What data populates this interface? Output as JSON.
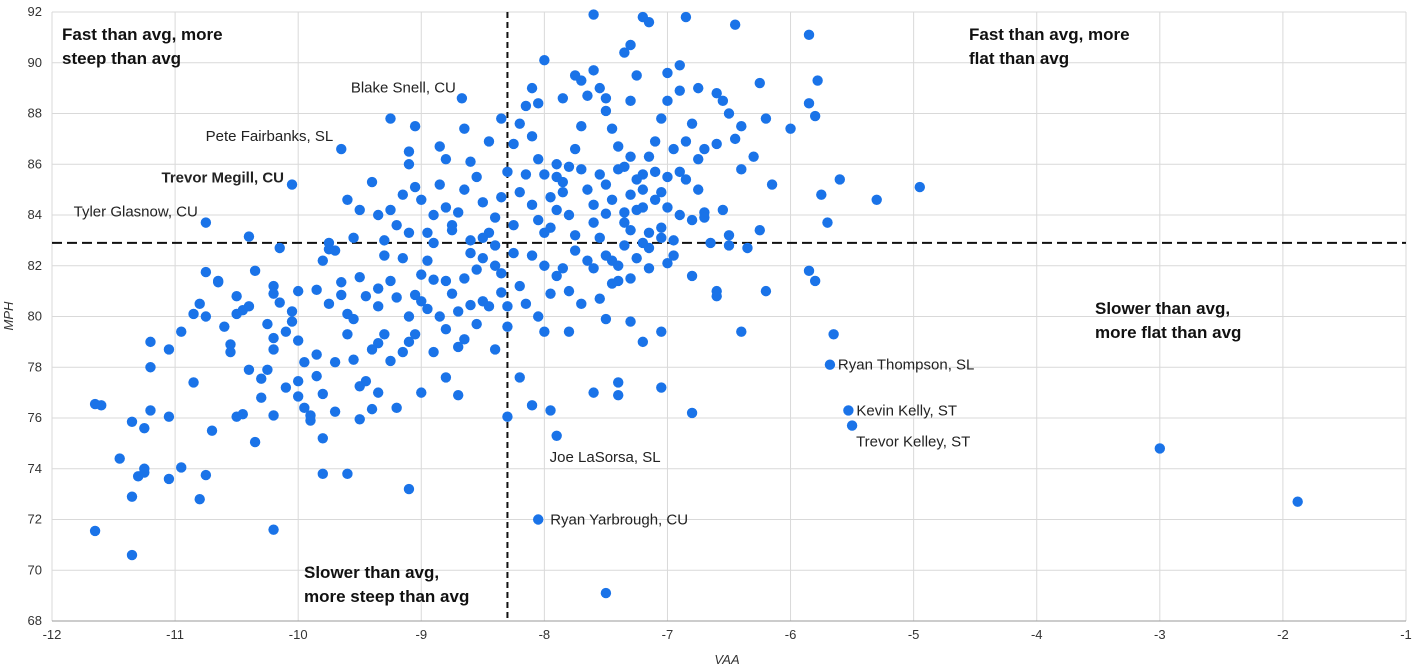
{
  "chart_data": {
    "type": "scatter",
    "xlabel": "VAA",
    "ylabel": "MPH",
    "xlim": [
      -12,
      -1
    ],
    "ylim": [
      68,
      92
    ],
    "x_ticks": [
      -12,
      -11,
      -10,
      -9,
      -8,
      -7,
      -6,
      -5,
      -4,
      -3,
      -2,
      -1
    ],
    "y_ticks": [
      68,
      70,
      72,
      74,
      76,
      78,
      80,
      82,
      84,
      86,
      88,
      90,
      92
    ],
    "grid": true,
    "point_color": "#1a73e8",
    "average_lines": {
      "x": -8.3,
      "y": 82.9,
      "style": "dashed",
      "color": "#111111"
    },
    "quadrant_labels": [
      {
        "text": "Fast than avg, more\nsteep than avg"
      },
      {
        "text": "Fast than avg, more\nflat than avg"
      },
      {
        "text": "Slower than avg,\nmore flat than avg"
      },
      {
        "text": "Slower than avg,\nmore steep than avg"
      }
    ],
    "annotations": [
      {
        "text": "Blake Snell, CU",
        "x": -8.67,
        "y": 88.6,
        "color": "#222222"
      },
      {
        "text": "Pete Fairbanks, SL",
        "x": -9.65,
        "y": 86.6,
        "color": "#222222"
      },
      {
        "text": "Trevor Megill, CU",
        "x": -10.05,
        "y": 85.2,
        "color": "#c62828"
      },
      {
        "text": "Tyler Glasnow, CU",
        "x": -10.75,
        "y": 83.7,
        "color": "#222222"
      },
      {
        "text": "Ryan Thompson, SL",
        "x": -5.68,
        "y": 78.1,
        "color": "#222222"
      },
      {
        "text": "Kevin Kelly, ST",
        "x": -5.53,
        "y": 76.3,
        "color": "#222222"
      },
      {
        "text": "Trevor Kelley, ST",
        "x": -5.5,
        "y": 75.7,
        "color": "#222222"
      },
      {
        "text": "Joe LaSorsa, SL",
        "x": -7.9,
        "y": 75.3,
        "color": "#222222"
      },
      {
        "text": "Ryan Yarbrough, CU",
        "x": -8.05,
        "y": 72.0,
        "color": "#222222"
      }
    ],
    "points": [
      [
        -11.65,
        71.55
      ],
      [
        -11.35,
        70.6
      ],
      [
        -11.65,
        76.55
      ],
      [
        -11.6,
        76.5
      ],
      [
        -11.45,
        74.4
      ],
      [
        -11.35,
        75.85
      ],
      [
        -11.25,
        75.6
      ],
      [
        -11.2,
        76.3
      ],
      [
        -11.25,
        74.0
      ],
      [
        -11.3,
        73.7
      ],
      [
        -11.35,
        72.9
      ],
      [
        -11.25,
        73.85
      ],
      [
        -11.05,
        76.05
      ],
      [
        -11.05,
        73.6
      ],
      [
        -10.95,
        74.05
      ],
      [
        -10.8,
        72.8
      ],
      [
        -10.75,
        73.75
      ],
      [
        -10.2,
        71.6
      ],
      [
        -9.1,
        73.2
      ],
      [
        -7.5,
        69.1
      ],
      [
        -3.0,
        74.8
      ],
      [
        -1.88,
        72.7
      ],
      [
        -11.2,
        79.0
      ],
      [
        -11.2,
        78.0
      ],
      [
        -11.05,
        78.7
      ],
      [
        -10.95,
        79.4
      ],
      [
        -10.85,
        77.4
      ],
      [
        -10.85,
        80.1
      ],
      [
        -10.8,
        80.5
      ],
      [
        -10.75,
        80.0
      ],
      [
        -10.75,
        81.75
      ],
      [
        -10.7,
        75.5
      ],
      [
        -10.65,
        81.4
      ],
      [
        -10.6,
        79.6
      ],
      [
        -10.55,
        78.9
      ],
      [
        -10.55,
        78.6
      ],
      [
        -10.5,
        80.1
      ],
      [
        -10.5,
        76.05
      ],
      [
        -10.45,
        76.15
      ],
      [
        -10.45,
        80.25
      ],
      [
        -10.4,
        77.9
      ],
      [
        -10.4,
        80.4
      ],
      [
        -10.35,
        75.05
      ],
      [
        -10.35,
        81.8
      ],
      [
        -10.3,
        76.8
      ],
      [
        -10.3,
        77.55
      ],
      [
        -10.25,
        77.9
      ],
      [
        -10.25,
        79.7
      ],
      [
        -10.2,
        76.1
      ],
      [
        -10.2,
        78.7
      ],
      [
        -10.2,
        79.15
      ],
      [
        -10.2,
        80.9
      ],
      [
        -10.2,
        81.2
      ],
      [
        -10.15,
        80.55
      ],
      [
        -10.1,
        79.4
      ],
      [
        -10.1,
        77.2
      ],
      [
        -10.05,
        80.2
      ],
      [
        -10.05,
        79.8
      ],
      [
        -10.0,
        77.45
      ],
      [
        -10.0,
        76.85
      ],
      [
        -10.0,
        81.0
      ],
      [
        -9.95,
        78.2
      ],
      [
        -9.95,
        76.4
      ],
      [
        -9.9,
        75.9
      ],
      [
        -9.9,
        76.1
      ],
      [
        -9.85,
        77.65
      ],
      [
        -9.85,
        81.05
      ],
      [
        -9.85,
        78.5
      ],
      [
        -9.8,
        76.95
      ],
      [
        -9.8,
        75.2
      ],
      [
        -9.8,
        82.2
      ],
      [
        -9.75,
        80.5
      ],
      [
        -9.75,
        82.65
      ],
      [
        -9.7,
        76.25
      ],
      [
        -9.7,
        78.2
      ],
      [
        -9.65,
        80.85
      ],
      [
        -9.65,
        81.35
      ],
      [
        -9.6,
        79.3
      ],
      [
        -9.6,
        80.1
      ],
      [
        -9.55,
        78.3
      ],
      [
        -9.55,
        79.9
      ],
      [
        -9.5,
        75.95
      ],
      [
        -9.5,
        77.25
      ],
      [
        -9.5,
        81.55
      ],
      [
        -9.45,
        80.8
      ],
      [
        -9.45,
        77.45
      ],
      [
        -9.4,
        78.7
      ],
      [
        -9.4,
        76.35
      ],
      [
        -9.35,
        78.95
      ],
      [
        -9.35,
        80.4
      ],
      [
        -9.3,
        82.4
      ],
      [
        -9.3,
        79.3
      ],
      [
        -9.25,
        81.4
      ],
      [
        -9.25,
        78.25
      ],
      [
        -9.2,
        80.75
      ],
      [
        -9.15,
        82.3
      ],
      [
        -9.15,
        78.6
      ],
      [
        -9.1,
        80.0
      ],
      [
        -9.1,
        79.0
      ],
      [
        -9.05,
        80.85
      ],
      [
        -9.0,
        80.6
      ],
      [
        -9.0,
        81.65
      ],
      [
        -8.95,
        82.2
      ],
      [
        -8.95,
        80.3
      ],
      [
        -8.9,
        81.45
      ],
      [
        -8.9,
        78.6
      ],
      [
        -8.85,
        80.0
      ],
      [
        -8.8,
        79.5
      ],
      [
        -8.8,
        81.4
      ],
      [
        -8.75,
        80.9
      ],
      [
        -8.7,
        78.8
      ],
      [
        -8.7,
        80.2
      ],
      [
        -8.65,
        79.1
      ],
      [
        -8.65,
        81.5
      ],
      [
        -8.6,
        80.45
      ],
      [
        -8.55,
        79.7
      ],
      [
        -8.55,
        81.85
      ],
      [
        -8.5,
        80.6
      ],
      [
        -8.5,
        82.3
      ],
      [
        -8.45,
        80.4
      ],
      [
        -8.4,
        78.7
      ],
      [
        -8.4,
        82.0
      ],
      [
        -8.35,
        80.95
      ],
      [
        -8.35,
        81.7
      ],
      [
        -8.3,
        80.4
      ],
      [
        -8.3,
        79.6
      ],
      [
        -8.25,
        82.5
      ],
      [
        -10.4,
        83.15
      ],
      [
        -10.65,
        81.35
      ],
      [
        -10.15,
        82.7
      ],
      [
        -9.35,
        81.1
      ],
      [
        -9.75,
        82.9
      ],
      [
        -10.5,
        80.8
      ],
      [
        -9.2,
        76.4
      ],
      [
        -9.0,
        77.0
      ],
      [
        -9.6,
        73.8
      ],
      [
        -9.8,
        73.8
      ],
      [
        -10.0,
        79.05
      ],
      [
        -9.35,
        77.0
      ],
      [
        -8.7,
        76.9
      ],
      [
        -8.8,
        77.6
      ],
      [
        -9.05,
        79.3
      ],
      [
        -8.6,
        82.5
      ],
      [
        -7.9,
        75.3
      ],
      [
        -8.05,
        72.0
      ],
      [
        -7.6,
        77.0
      ],
      [
        -7.4,
        77.4
      ],
      [
        -7.05,
        77.2
      ],
      [
        -6.8,
        76.2
      ],
      [
        -8.1,
        76.5
      ],
      [
        -7.95,
        76.3
      ],
      [
        -8.2,
        77.6
      ],
      [
        -8.3,
        76.05
      ],
      [
        -7.4,
        76.9
      ],
      [
        -7.8,
        79.4
      ],
      [
        -8.0,
        79.4
      ],
      [
        -7.5,
        79.9
      ],
      [
        -7.3,
        79.8
      ],
      [
        -7.2,
        79.0
      ],
      [
        -7.05,
        79.4
      ],
      [
        -6.4,
        79.4
      ],
      [
        -6.6,
        80.8
      ],
      [
        -6.6,
        81.0
      ],
      [
        -6.8,
        81.6
      ],
      [
        -7.0,
        82.1
      ],
      [
        -6.2,
        81.0
      ],
      [
        -5.85,
        81.8
      ],
      [
        -5.8,
        81.4
      ],
      [
        -5.65,
        79.3
      ],
      [
        -5.68,
        78.1
      ],
      [
        -5.53,
        76.3
      ],
      [
        -5.5,
        75.7
      ],
      [
        -7.6,
        83.7
      ],
      [
        -7.55,
        85.6
      ],
      [
        -7.5,
        84.05
      ],
      [
        -7.45,
        82.2
      ],
      [
        -7.4,
        81.4
      ],
      [
        -7.35,
        82.8
      ],
      [
        -7.3,
        83.4
      ],
      [
        -7.25,
        84.2
      ],
      [
        -7.2,
        85.0
      ],
      [
        -7.15,
        82.7
      ],
      [
        -7.1,
        84.6
      ],
      [
        -7.05,
        83.5
      ],
      [
        -7.0,
        85.5
      ],
      [
        -6.95,
        83.0
      ],
      [
        -6.9,
        84.0
      ],
      [
        -6.85,
        85.4
      ],
      [
        -6.8,
        83.8
      ],
      [
        -6.75,
        86.2
      ],
      [
        -6.7,
        84.1
      ],
      [
        -6.65,
        82.9
      ],
      [
        -6.6,
        86.8
      ],
      [
        -6.55,
        84.2
      ],
      [
        -6.5,
        82.8
      ],
      [
        -6.45,
        87.0
      ],
      [
        -6.4,
        85.8
      ],
      [
        -6.35,
        82.7
      ],
      [
        -6.3,
        86.3
      ],
      [
        -6.25,
        83.4
      ],
      [
        -6.2,
        87.8
      ],
      [
        -6.15,
        85.2
      ],
      [
        -6.0,
        87.4
      ],
      [
        -5.85,
        88.4
      ],
      [
        -5.8,
        87.9
      ],
      [
        -5.75,
        84.8
      ],
      [
        -5.7,
        83.7
      ],
      [
        -5.6,
        85.4
      ],
      [
        -5.3,
        84.6
      ],
      [
        -4.95,
        85.1
      ],
      [
        -5.85,
        91.1
      ],
      [
        -6.45,
        91.5
      ],
      [
        -6.85,
        91.8
      ],
      [
        -7.2,
        91.8
      ],
      [
        -7.6,
        91.9
      ],
      [
        -7.15,
        91.6
      ],
      [
        -5.78,
        89.3
      ],
      [
        -6.25,
        89.2
      ],
      [
        -6.6,
        88.8
      ],
      [
        -6.4,
        87.5
      ],
      [
        -6.5,
        88.0
      ],
      [
        -6.55,
        88.5
      ],
      [
        -6.75,
        89.0
      ],
      [
        -6.9,
        88.9
      ],
      [
        -7.0,
        88.5
      ],
      [
        -7.05,
        87.8
      ],
      [
        -7.1,
        86.9
      ],
      [
        -7.15,
        86.3
      ],
      [
        -7.2,
        85.6
      ],
      [
        -7.3,
        84.8
      ],
      [
        -7.35,
        85.9
      ],
      [
        -7.4,
        86.7
      ],
      [
        -7.45,
        87.4
      ],
      [
        -7.5,
        88.1
      ],
      [
        -7.55,
        89.0
      ],
      [
        -7.6,
        89.7
      ],
      [
        -7.65,
        88.7
      ],
      [
        -7.7,
        87.5
      ],
      [
        -7.75,
        86.6
      ],
      [
        -7.8,
        85.9
      ],
      [
        -7.85,
        84.9
      ],
      [
        -7.9,
        84.2
      ],
      [
        -7.95,
        83.5
      ],
      [
        -8.0,
        85.6
      ],
      [
        -8.05,
        86.2
      ],
      [
        -8.1,
        87.1
      ],
      [
        -8.15,
        88.3
      ],
      [
        -8.2,
        87.6
      ],
      [
        -8.25,
        86.8
      ],
      [
        -8.3,
        85.7
      ],
      [
        -8.35,
        84.7
      ],
      [
        -8.4,
        83.9
      ],
      [
        -8.45,
        83.3
      ],
      [
        -8.5,
        84.5
      ],
      [
        -8.55,
        85.5
      ],
      [
        -8.6,
        86.1
      ],
      [
        -8.65,
        85.0
      ],
      [
        -8.7,
        84.1
      ],
      [
        -8.75,
        83.4
      ],
      [
        -8.8,
        84.3
      ],
      [
        -8.85,
        85.2
      ],
      [
        -8.9,
        84.0
      ],
      [
        -8.95,
        83.3
      ],
      [
        -9.0,
        84.6
      ],
      [
        -9.05,
        85.1
      ],
      [
        -9.1,
        86.0
      ],
      [
        -9.15,
        84.8
      ],
      [
        -9.2,
        83.6
      ],
      [
        -9.25,
        84.2
      ],
      [
        -9.3,
        83.0
      ],
      [
        -9.35,
        84.0
      ],
      [
        -9.4,
        85.3
      ],
      [
        -9.5,
        84.2
      ],
      [
        -9.55,
        83.1
      ],
      [
        -9.6,
        84.6
      ],
      [
        -9.7,
        82.6
      ],
      [
        -9.1,
        83.3
      ],
      [
        -8.9,
        82.9
      ],
      [
        -8.75,
        83.6
      ],
      [
        -8.6,
        83.0
      ],
      [
        -8.5,
        83.1
      ],
      [
        -8.4,
        82.8
      ],
      [
        -8.67,
        88.6
      ],
      [
        -9.65,
        86.6
      ],
      [
        -10.05,
        85.2
      ],
      [
        -10.75,
        83.7
      ],
      [
        -9.25,
        87.8
      ],
      [
        -9.05,
        87.5
      ],
      [
        -8.85,
        86.7
      ],
      [
        -8.45,
        86.9
      ],
      [
        -8.65,
        87.4
      ],
      [
        -9.1,
        86.5
      ],
      [
        -8.8,
        86.2
      ],
      [
        -8.35,
        87.8
      ],
      [
        -8.05,
        88.4
      ],
      [
        -7.85,
        88.6
      ],
      [
        -7.7,
        89.3
      ],
      [
        -7.5,
        88.6
      ],
      [
        -7.3,
        88.5
      ],
      [
        -7.25,
        89.5
      ],
      [
        -7.0,
        89.6
      ],
      [
        -6.9,
        89.9
      ],
      [
        -8.0,
        90.1
      ],
      [
        -7.35,
        90.4
      ],
      [
        -7.3,
        90.7
      ],
      [
        -7.75,
        89.5
      ],
      [
        -8.1,
        89.0
      ],
      [
        -7.9,
        86.0
      ],
      [
        -7.85,
        85.3
      ],
      [
        -7.8,
        84.0
      ],
      [
        -7.75,
        83.2
      ],
      [
        -7.7,
        85.8
      ],
      [
        -7.65,
        85.0
      ],
      [
        -7.6,
        84.4
      ],
      [
        -7.55,
        83.1
      ],
      [
        -7.5,
        85.2
      ],
      [
        -7.45,
        84.6
      ],
      [
        -7.4,
        85.8
      ],
      [
        -7.35,
        84.1
      ],
      [
        -7.3,
        86.3
      ],
      [
        -7.25,
        85.4
      ],
      [
        -7.2,
        84.3
      ],
      [
        -7.15,
        83.3
      ],
      [
        -7.1,
        85.7
      ],
      [
        -7.05,
        84.9
      ],
      [
        -7.0,
        84.3
      ],
      [
        -6.95,
        86.6
      ],
      [
        -6.9,
        85.7
      ],
      [
        -6.85,
        86.9
      ],
      [
        -6.8,
        87.6
      ],
      [
        -6.75,
        85.0
      ],
      [
        -6.7,
        86.6
      ],
      [
        -8.2,
        84.9
      ],
      [
        -8.15,
        85.6
      ],
      [
        -8.1,
        84.4
      ],
      [
        -8.05,
        83.8
      ],
      [
        -8.0,
        83.3
      ],
      [
        -7.95,
        84.7
      ],
      [
        -7.9,
        85.5
      ],
      [
        -8.25,
        83.6
      ],
      [
        -8.1,
        82.4
      ],
      [
        -8.0,
        82.0
      ],
      [
        -7.9,
        81.6
      ],
      [
        -7.8,
        81.0
      ],
      [
        -7.7,
        80.5
      ],
      [
        -7.6,
        81.9
      ],
      [
        -7.5,
        82.4
      ],
      [
        -7.4,
        82.0
      ],
      [
        -7.3,
        81.5
      ],
      [
        -7.2,
        82.9
      ],
      [
        -8.2,
        81.2
      ],
      [
        -8.15,
        80.5
      ],
      [
        -8.05,
        80.0
      ],
      [
        -7.95,
        80.9
      ],
      [
        -7.85,
        81.9
      ],
      [
        -7.75,
        82.6
      ],
      [
        -7.65,
        82.2
      ],
      [
        -7.55,
        80.7
      ],
      [
        -7.45,
        81.3
      ],
      [
        -7.35,
        83.7
      ],
      [
        -7.25,
        82.3
      ],
      [
        -7.15,
        81.9
      ],
      [
        -7.05,
        83.1
      ],
      [
        -6.95,
        82.4
      ],
      [
        -6.7,
        83.9
      ],
      [
        -6.5,
        83.2
      ]
    ]
  }
}
